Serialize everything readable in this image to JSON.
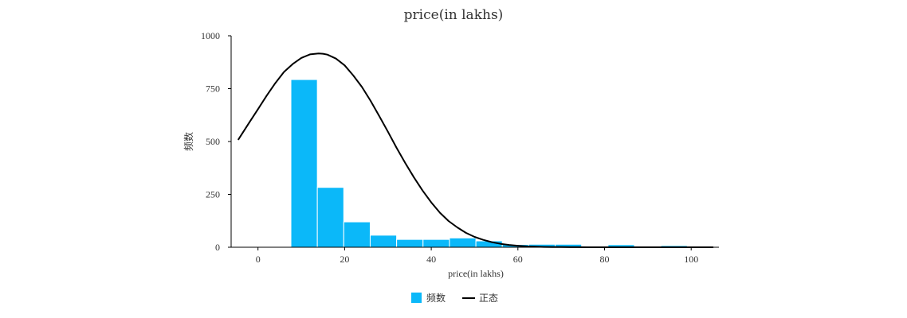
{
  "chart_data": {
    "type": "bar",
    "title": "price(in lakhs)",
    "xlabel": "price(in lakhs)",
    "ylabel": "频数",
    "xlim": [
      -6.2,
      106.4
    ],
    "ylim": [
      0,
      1000
    ],
    "x_ticks": [
      0,
      20,
      40,
      60,
      80,
      100
    ],
    "y_ticks": [
      0,
      250,
      500,
      750,
      1000
    ],
    "grid": false,
    "legend_position": "bottom-center",
    "bin_width": 6.1,
    "histogram": {
      "name": "频数",
      "color": "#0bb8f9",
      "bin_starts": [
        7.6,
        13.7,
        19.8,
        25.9,
        32.0,
        38.1,
        44.2,
        50.3,
        56.4,
        62.5,
        68.6,
        74.7,
        80.8,
        86.9,
        93.0,
        99.1
      ],
      "values": [
        793,
        283,
        120,
        57,
        37,
        37,
        44,
        30,
        13,
        14,
        14,
        2,
        12,
        1,
        8,
        1
      ]
    },
    "normal_curve": {
      "name": "正态",
      "color": "#000000",
      "x": [
        -4.5,
        -2,
        0,
        2,
        4,
        6,
        8,
        10,
        12,
        14,
        15,
        16,
        18,
        20,
        22,
        24,
        26,
        28,
        30,
        32,
        34,
        36,
        38,
        40,
        42,
        44,
        46,
        48,
        50,
        52,
        54,
        56,
        58,
        60,
        62,
        64,
        66,
        68,
        70,
        72,
        74,
        76,
        78,
        80,
        82,
        84,
        86,
        88,
        90,
        92,
        94,
        96,
        98,
        100,
        102,
        105
      ],
      "values": [
        510,
        590,
        653,
        717,
        776,
        829,
        866,
        895,
        912,
        916,
        915,
        911,
        892,
        860,
        812,
        758,
        692,
        620,
        546,
        470,
        398,
        330,
        268,
        212,
        163,
        124,
        94,
        68,
        49,
        35,
        24,
        16,
        11,
        7,
        4,
        2.5,
        1.6,
        1,
        0.6,
        0.3,
        0.2,
        0.1,
        0.1,
        0,
        0,
        0,
        0,
        0,
        0,
        0,
        0,
        0,
        0,
        0,
        0,
        0
      ]
    }
  }
}
